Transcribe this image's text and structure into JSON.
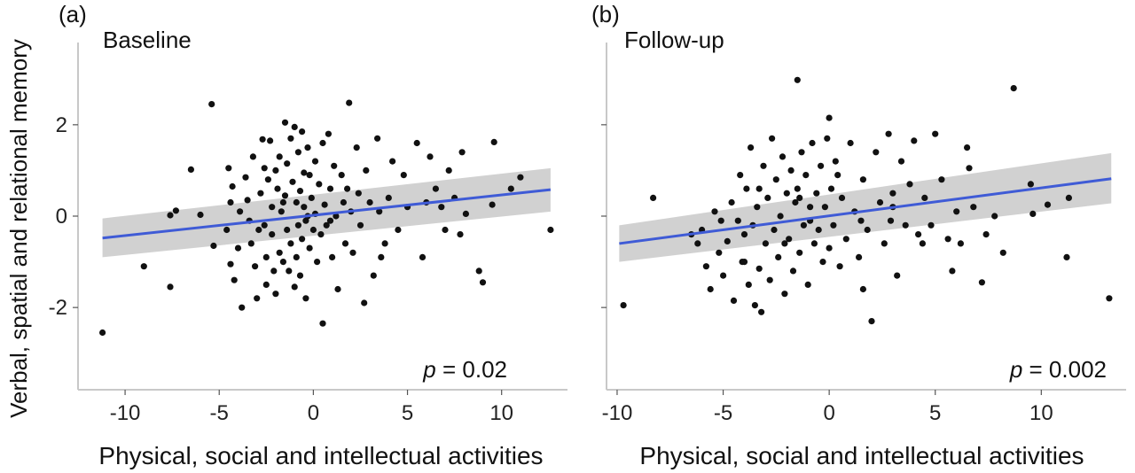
{
  "figure": {
    "ylabel": "Verbal, spatial and relational memory",
    "colors": {
      "points": "#111111",
      "fit_line": "#3f5bd6",
      "ci_band": "#c9c9c9",
      "axis": "#c8c8c8"
    }
  },
  "chart_data": [
    {
      "type": "scatter",
      "panel_label": "(a)",
      "title": "Baseline",
      "xlabel": "Physical, social and intellectual activities",
      "ylabel": "Verbal, spatial and relational memory",
      "xlim": [
        -12.5,
        13.5
      ],
      "ylim": [
        -3.8,
        3.8
      ],
      "xticks": [
        -10,
        -5,
        0,
        5,
        10
      ],
      "yticks": [
        -2,
        0,
        2
      ],
      "xtick_labels": [
        "-10",
        "-5",
        "0",
        "5",
        "10"
      ],
      "ytick_labels": [
        "-2",
        "0",
        "2"
      ],
      "annotation": {
        "italic": "p",
        "text": " = 0.02"
      },
      "fit": {
        "x": [
          -11.2,
          12.6
        ],
        "y": [
          -0.48,
          0.58
        ],
        "ci_low": [
          -0.9,
          0.1
        ],
        "ci_high": [
          -0.05,
          1.05
        ]
      },
      "points": [
        [
          -11.2,
          -2.55
        ],
        [
          -9.0,
          -1.1
        ],
        [
          -7.6,
          0.02
        ],
        [
          -7.6,
          -1.55
        ],
        [
          -7.3,
          0.12
        ],
        [
          -6.5,
          1.02
        ],
        [
          -6.0,
          0.03
        ],
        [
          -5.4,
          2.45
        ],
        [
          -5.3,
          -0.65
        ],
        [
          -4.6,
          -0.3
        ],
        [
          -4.5,
          1.05
        ],
        [
          -4.3,
          0.65
        ],
        [
          -4.4,
          0.3
        ],
        [
          -4.4,
          -1.05
        ],
        [
          -4.2,
          -1.4
        ],
        [
          -4.0,
          -0.7
        ],
        [
          -3.8,
          -2.0
        ],
        [
          -3.6,
          0.85
        ],
        [
          -3.5,
          0.35
        ],
        [
          -3.4,
          -0.1
        ],
        [
          -3.3,
          -0.6
        ],
        [
          -3.2,
          1.3
        ],
        [
          -3.1,
          -1.1
        ],
        [
          -3.0,
          -1.8
        ],
        [
          -2.8,
          0.5
        ],
        [
          -2.7,
          1.68
        ],
        [
          -2.6,
          1.05
        ],
        [
          -2.6,
          -0.2
        ],
        [
          -2.5,
          -0.9
        ],
        [
          -2.5,
          -1.5
        ],
        [
          -2.4,
          0.8
        ],
        [
          -2.3,
          1.65
        ],
        [
          -2.2,
          0.2
        ],
        [
          -2.2,
          -0.4
        ],
        [
          -2.1,
          -1.2
        ],
        [
          -2.0,
          1.0
        ],
        [
          -2.0,
          -1.7
        ],
        [
          -1.9,
          0.6
        ],
        [
          -1.8,
          1.3
        ],
        [
          -1.8,
          -0.8
        ],
        [
          -1.7,
          0.1
        ],
        [
          -1.6,
          -1.0
        ],
        [
          -1.5,
          2.05
        ],
        [
          -1.5,
          0.45
        ],
        [
          -1.4,
          1.15
        ],
        [
          -1.4,
          -0.3
        ],
        [
          -1.3,
          -1.2
        ],
        [
          -1.2,
          1.7
        ],
        [
          -1.2,
          -0.6
        ],
        [
          -1.1,
          0.75
        ],
        [
          -1.0,
          1.95
        ],
        [
          -1.0,
          -1.55
        ],
        [
          -0.9,
          0.3
        ],
        [
          -0.9,
          -0.9
        ],
        [
          -0.8,
          1.4
        ],
        [
          -0.8,
          -0.2
        ],
        [
          -0.7,
          0.55
        ],
        [
          -0.7,
          -1.3
        ],
        [
          -0.6,
          1.85
        ],
        [
          -0.6,
          -0.5
        ],
        [
          -0.5,
          0.2
        ],
        [
          -0.5,
          0.95
        ],
        [
          -0.4,
          -0.1
        ],
        [
          -0.4,
          -1.8
        ],
        [
          -0.3,
          1.5
        ],
        [
          -0.3,
          0.0
        ],
        [
          -0.2,
          -0.7
        ],
        [
          -0.1,
          0.4
        ],
        [
          0.0,
          -0.3
        ],
        [
          0.1,
          1.2
        ],
        [
          0.1,
          0.05
        ],
        [
          0.2,
          -1.0
        ],
        [
          0.3,
          0.7
        ],
        [
          0.4,
          -0.4
        ],
        [
          0.5,
          -2.35
        ],
        [
          0.5,
          1.6
        ],
        [
          0.6,
          0.25
        ],
        [
          0.7,
          -0.2
        ],
        [
          0.8,
          1.8
        ],
        [
          0.9,
          0.6
        ],
        [
          1.0,
          -0.9
        ],
        [
          1.1,
          1.1
        ],
        [
          1.2,
          0.0
        ],
        [
          1.3,
          -1.6
        ],
        [
          1.5,
          0.9
        ],
        [
          1.6,
          0.3
        ],
        [
          1.7,
          -0.6
        ],
        [
          1.9,
          2.48
        ],
        [
          2.0,
          0.1
        ],
        [
          2.1,
          -0.8
        ],
        [
          2.3,
          1.5
        ],
        [
          2.4,
          0.5
        ],
        [
          2.5,
          -0.2
        ],
        [
          2.7,
          -1.9
        ],
        [
          2.8,
          1.0
        ],
        [
          3.0,
          0.3
        ],
        [
          3.2,
          -1.3
        ],
        [
          3.4,
          1.7
        ],
        [
          3.5,
          0.1
        ],
        [
          3.8,
          -0.6
        ],
        [
          4.0,
          0.4
        ],
        [
          4.2,
          1.2
        ],
        [
          4.5,
          -0.3
        ],
        [
          5.0,
          0.2
        ],
        [
          5.5,
          1.6
        ],
        [
          5.8,
          -0.9
        ],
        [
          6.0,
          0.3
        ],
        [
          6.2,
          1.3
        ],
        [
          6.5,
          0.6
        ],
        [
          6.8,
          0.2
        ],
        [
          7.0,
          -0.3
        ],
        [
          7.2,
          1.0
        ],
        [
          7.5,
          0.4
        ],
        [
          7.8,
          -0.4
        ],
        [
          7.9,
          1.4
        ],
        [
          8.1,
          0.05
        ],
        [
          8.8,
          -1.2
        ],
        [
          9.0,
          -1.45
        ],
        [
          9.5,
          0.25
        ],
        [
          9.6,
          1.62
        ],
        [
          10.5,
          0.6
        ],
        [
          11.0,
          0.85
        ],
        [
          12.6,
          -0.3
        ],
        [
          -3.9,
          0.1
        ],
        [
          -2.9,
          -0.3
        ],
        [
          -1.6,
          0.3
        ],
        [
          -0.2,
          0.9
        ],
        [
          0.9,
          -0.1
        ],
        [
          1.8,
          0.6
        ],
        [
          3.6,
          -0.9
        ],
        [
          4.8,
          0.9
        ]
      ]
    },
    {
      "type": "scatter",
      "panel_label": "(b)",
      "title": "Follow-up",
      "xlabel": "Physical, social and intellectual activities",
      "ylabel": "",
      "xlim": [
        -10.5,
        14.0
      ],
      "ylim": [
        -3.8,
        3.8
      ],
      "xticks": [
        -10,
        -5,
        0,
        5,
        10
      ],
      "yticks": [
        -2,
        0,
        2
      ],
      "xtick_labels": [
        "-10",
        "-5",
        "0",
        "5",
        "10"
      ],
      "ytick_labels": [
        "",
        "",
        ""
      ],
      "annotation": {
        "italic": "p",
        "text": " = 0.002"
      },
      "fit": {
        "x": [
          -9.9,
          13.3
        ],
        "y": [
          -0.6,
          0.82
        ],
        "ci_low": [
          -1.0,
          0.28
        ],
        "ci_high": [
          -0.2,
          1.38
        ]
      },
      "points": [
        [
          -9.7,
          -1.95
        ],
        [
          -8.3,
          0.4
        ],
        [
          -6.5,
          -0.4
        ],
        [
          -6.0,
          -0.3
        ],
        [
          -5.8,
          -1.1
        ],
        [
          -5.6,
          -1.6
        ],
        [
          -5.4,
          0.1
        ],
        [
          -5.2,
          -0.8
        ],
        [
          -5.0,
          -1.3
        ],
        [
          -4.8,
          -0.55
        ],
        [
          -4.6,
          0.3
        ],
        [
          -4.5,
          -1.85
        ],
        [
          -4.3,
          -0.1
        ],
        [
          -4.2,
          0.9
        ],
        [
          -4.1,
          -1.0
        ],
        [
          -4.0,
          -0.4
        ],
        [
          -3.9,
          0.6
        ],
        [
          -3.8,
          -1.5
        ],
        [
          -3.7,
          1.5
        ],
        [
          -3.6,
          -0.2
        ],
        [
          -3.5,
          -1.95
        ],
        [
          -3.4,
          0.2
        ],
        [
          -3.3,
          -1.15
        ],
        [
          -3.2,
          -2.1
        ],
        [
          -3.1,
          1.1
        ],
        [
          -3.0,
          -0.6
        ],
        [
          -2.9,
          0.4
        ],
        [
          -2.8,
          -1.4
        ],
        [
          -2.7,
          1.7
        ],
        [
          -2.6,
          -0.3
        ],
        [
          -2.5,
          0.8
        ],
        [
          -2.4,
          -0.9
        ],
        [
          -2.3,
          0.0
        ],
        [
          -2.2,
          1.3
        ],
        [
          -2.1,
          -1.7
        ],
        [
          -2.0,
          0.5
        ],
        [
          -1.9,
          -0.5
        ],
        [
          -1.8,
          1.0
        ],
        [
          -1.7,
          -1.2
        ],
        [
          -1.6,
          0.3
        ],
        [
          -1.5,
          0.6
        ],
        [
          -1.5,
          2.98
        ],
        [
          -1.4,
          -0.8
        ],
        [
          -1.3,
          1.4
        ],
        [
          -1.2,
          -0.2
        ],
        [
          -1.1,
          0.9
        ],
        [
          -1.0,
          -1.5
        ],
        [
          -0.9,
          0.2
        ],
        [
          -0.8,
          1.6
        ],
        [
          -0.7,
          -0.6
        ],
        [
          -0.6,
          0.5
        ],
        [
          -0.5,
          -0.3
        ],
        [
          -0.4,
          1.1
        ],
        [
          -0.3,
          -1.0
        ],
        [
          -0.2,
          0.2
        ],
        [
          -0.1,
          1.7
        ],
        [
          0.0,
          2.15
        ],
        [
          0.0,
          -0.7
        ],
        [
          0.1,
          0.6
        ],
        [
          0.2,
          -0.2
        ],
        [
          0.3,
          1.2
        ],
        [
          0.5,
          -1.1
        ],
        [
          0.6,
          0.4
        ],
        [
          0.8,
          -0.5
        ],
        [
          1.0,
          1.6
        ],
        [
          1.2,
          0.1
        ],
        [
          1.4,
          -0.9
        ],
        [
          1.6,
          0.8
        ],
        [
          1.8,
          -0.3
        ],
        [
          2.0,
          -2.3
        ],
        [
          2.2,
          1.4
        ],
        [
          2.4,
          0.3
        ],
        [
          2.6,
          -0.6
        ],
        [
          2.8,
          1.8
        ],
        [
          3.0,
          0.5
        ],
        [
          3.2,
          -1.3
        ],
        [
          3.4,
          1.2
        ],
        [
          3.6,
          -0.2
        ],
        [
          3.8,
          0.7
        ],
        [
          4.0,
          1.65
        ],
        [
          4.2,
          -0.4
        ],
        [
          4.5,
          0.4
        ],
        [
          4.8,
          -0.2
        ],
        [
          5.0,
          1.8
        ],
        [
          5.3,
          0.8
        ],
        [
          5.6,
          -0.5
        ],
        [
          6.0,
          0.1
        ],
        [
          6.2,
          -0.6
        ],
        [
          6.5,
          1.5
        ],
        [
          6.6,
          1.05
        ],
        [
          6.8,
          0.2
        ],
        [
          7.2,
          -1.45
        ],
        [
          7.4,
          -0.4
        ],
        [
          7.8,
          0.0
        ],
        [
          8.2,
          -0.8
        ],
        [
          8.7,
          2.8
        ],
        [
          9.5,
          0.7
        ],
        [
          9.6,
          0.05
        ],
        [
          10.3,
          0.25
        ],
        [
          11.2,
          -0.9
        ],
        [
          11.3,
          0.4
        ],
        [
          13.2,
          -1.8
        ],
        [
          -6.2,
          -0.6
        ],
        [
          -5.1,
          -0.1
        ],
        [
          -3.3,
          0.6
        ],
        [
          -2.1,
          -0.6
        ],
        [
          -0.9,
          -0.1
        ],
        [
          0.4,
          0.9
        ],
        [
          1.5,
          -0.1
        ],
        [
          2.9,
          -0.1
        ],
        [
          4.4,
          -0.6
        ],
        [
          5.8,
          -1.2
        ],
        [
          1.6,
          -1.6
        ],
        [
          -4.0,
          -1.0
        ],
        [
          -1.4,
          0.4
        ],
        [
          3.0,
          0.2
        ]
      ]
    }
  ]
}
